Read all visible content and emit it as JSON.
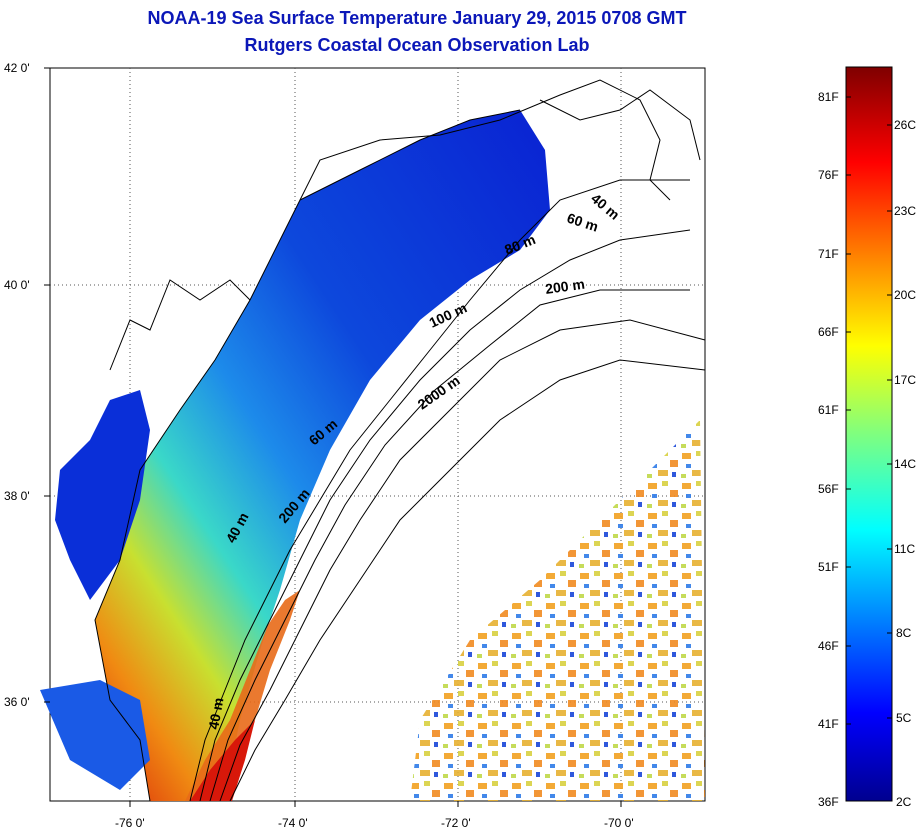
{
  "title_line1": "NOAA-19 Sea Surface Temperature January 29, 2015 0708 GMT",
  "title_line2": "Rutgers Coastal Ocean Observation Lab",
  "lat_ticks": [
    "42 0'",
    "40 0'",
    "38 0'",
    "36 0'"
  ],
  "lon_ticks": [
    "-76 0'",
    "-74 0'",
    "-72 0'",
    "-70 0'"
  ],
  "contour_labels": [
    "40 m",
    "60 m",
    "80 m",
    "100 m",
    "200 m",
    "2000 m",
    "60 m",
    "200 m",
    "40 m",
    "40 m"
  ],
  "colorbar": {
    "fahrenheit": [
      "81F",
      "76F",
      "71F",
      "66F",
      "61F",
      "56F",
      "51F",
      "46F",
      "41F",
      "36F"
    ],
    "celsius": [
      "26C",
      "23C",
      "20C",
      "17C",
      "14C",
      "11C",
      "8C",
      "5C",
      "2C"
    ]
  },
  "colors": {
    "title": "#0b17b8",
    "cold": "#0a1fd6",
    "warm": "#e0200e"
  }
}
